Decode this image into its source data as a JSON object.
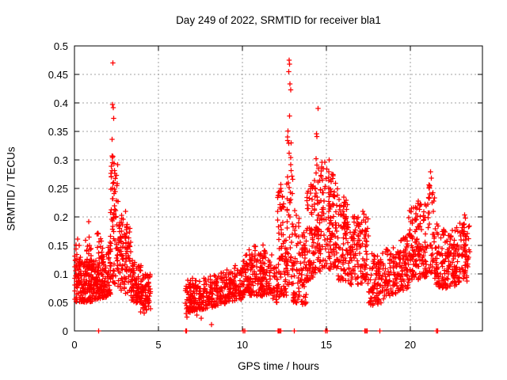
{
  "window": {
    "title": "Day 249 of 2022, SRMTID for receiver bla1"
  },
  "colors": {
    "background": "#ffffff",
    "marker": "#ff0000",
    "grid": "#a0a0a0",
    "axis": "#000000",
    "text": "#000000"
  },
  "chart_data": {
    "type": "scatter",
    "title": "Day 249 of 2022, SRMTID for receiver bla1",
    "xlabel": "GPS time / hours",
    "ylabel": "SRMTID / TECUs",
    "xlim": [
      0,
      24.3
    ],
    "ylim": [
      0,
      0.5
    ],
    "xticks": [
      0,
      5,
      10,
      15,
      20
    ],
    "xtick_labels": [
      "0",
      "5",
      "10",
      "15",
      "20"
    ],
    "yticks": [
      0,
      0.05,
      0.1,
      0.15,
      0.2,
      0.25,
      0.3,
      0.35,
      0.4,
      0.45,
      0.5
    ],
    "ytick_labels": [
      "0",
      "0.05",
      "0.1",
      "0.15",
      "0.2",
      "0.25",
      "0.3",
      "0.35",
      "0.4",
      "0.45",
      "0.5"
    ],
    "grid": true,
    "legend": "none",
    "marker": {
      "shape": "plus",
      "color": "#ff0000",
      "size": 3.2,
      "stroke_width": 1.3
    },
    "seed": 20220249,
    "series_name": "SRMTID",
    "segments_format": [
      "t_start",
      "t_end",
      "count",
      "v_min_start",
      "v_max_start",
      "v_min_end",
      "v_max_end",
      "density_bias_exponent"
    ],
    "segments": [
      [
        0.0,
        0.35,
        50,
        0.05,
        0.135,
        0.05,
        0.135,
        1.3
      ],
      [
        0.05,
        0.3,
        6,
        0.125,
        0.165,
        0.125,
        0.165,
        1.0
      ],
      [
        0.35,
        1.1,
        115,
        0.05,
        0.12,
        0.052,
        0.125,
        1.4
      ],
      [
        0.65,
        1.05,
        16,
        0.11,
        0.19,
        0.11,
        0.185,
        1.1
      ],
      [
        1.1,
        1.9,
        130,
        0.055,
        0.125,
        0.058,
        0.135,
        1.4
      ],
      [
        1.25,
        1.7,
        12,
        0.125,
        0.175,
        0.125,
        0.17,
        1.0
      ],
      [
        1.9,
        2.15,
        40,
        0.06,
        0.155,
        0.065,
        0.175,
        1.2
      ],
      [
        2.15,
        2.6,
        70,
        0.08,
        0.31,
        0.08,
        0.3,
        1.15
      ],
      [
        2.6,
        3.0,
        55,
        0.07,
        0.21,
        0.07,
        0.2,
        1.3
      ],
      [
        3.0,
        3.35,
        45,
        0.065,
        0.195,
        0.065,
        0.185,
        1.2
      ],
      [
        3.35,
        4.0,
        90,
        0.05,
        0.125,
        0.045,
        0.115,
        1.3
      ],
      [
        4.0,
        4.55,
        62,
        0.035,
        0.11,
        0.038,
        0.1,
        1.2
      ],
      [
        6.6,
        7.1,
        58,
        0.03,
        0.095,
        0.035,
        0.095,
        1.2
      ],
      [
        7.1,
        8.05,
        95,
        0.035,
        0.09,
        0.04,
        0.095,
        1.3
      ],
      [
        8.05,
        9.0,
        95,
        0.04,
        0.1,
        0.048,
        0.105,
        1.3
      ],
      [
        9.0,
        10.0,
        100,
        0.05,
        0.11,
        0.055,
        0.12,
        1.3
      ],
      [
        10.0,
        11.0,
        105,
        0.058,
        0.125,
        0.062,
        0.135,
        1.3
      ],
      [
        10.15,
        10.95,
        8,
        0.125,
        0.16,
        0.125,
        0.155,
        1.0
      ],
      [
        11.0,
        11.8,
        88,
        0.06,
        0.135,
        0.062,
        0.14,
        1.3
      ],
      [
        11.05,
        11.4,
        6,
        0.13,
        0.158,
        0.13,
        0.15,
        1.0
      ],
      [
        11.8,
        12.1,
        30,
        0.048,
        0.11,
        0.05,
        0.115,
        1.2
      ],
      [
        12.1,
        12.45,
        58,
        0.05,
        0.265,
        0.055,
        0.25,
        1.15
      ],
      [
        12.45,
        12.65,
        25,
        0.06,
        0.185,
        0.06,
        0.18,
        1.2
      ],
      [
        12.65,
        13.0,
        48,
        0.07,
        0.36,
        0.07,
        0.34,
        1.2
      ],
      [
        13.0,
        13.45,
        48,
        0.05,
        0.23,
        0.048,
        0.2,
        1.5
      ],
      [
        13.45,
        13.8,
        46,
        0.04,
        0.165,
        0.045,
        0.18,
        1.2
      ],
      [
        13.8,
        14.3,
        70,
        0.085,
        0.26,
        0.095,
        0.27,
        1.2
      ],
      [
        14.3,
        15.0,
        95,
        0.1,
        0.305,
        0.11,
        0.3,
        1.3
      ],
      [
        15.0,
        15.7,
        95,
        0.11,
        0.29,
        0.105,
        0.27,
        1.4
      ],
      [
        15.7,
        16.3,
        78,
        0.09,
        0.245,
        0.085,
        0.23,
        1.3
      ],
      [
        16.3,
        16.9,
        65,
        0.08,
        0.205,
        0.082,
        0.2,
        1.3
      ],
      [
        16.9,
        17.5,
        65,
        0.085,
        0.215,
        0.08,
        0.2,
        1.2
      ],
      [
        17.5,
        18.3,
        80,
        0.042,
        0.14,
        0.045,
        0.13,
        1.2
      ],
      [
        18.3,
        19.2,
        85,
        0.055,
        0.14,
        0.065,
        0.15,
        1.3
      ],
      [
        19.2,
        19.9,
        78,
        0.068,
        0.16,
        0.075,
        0.17,
        1.3
      ],
      [
        19.9,
        20.45,
        72,
        0.085,
        0.215,
        0.09,
        0.225,
        1.3
      ],
      [
        20.45,
        21.1,
        78,
        0.09,
        0.23,
        0.095,
        0.24,
        1.3
      ],
      [
        21.1,
        21.45,
        38,
        0.1,
        0.265,
        0.1,
        0.25,
        1.1
      ],
      [
        21.45,
        22.1,
        78,
        0.078,
        0.19,
        0.075,
        0.18,
        1.3
      ],
      [
        22.1,
        22.7,
        70,
        0.072,
        0.17,
        0.078,
        0.18,
        1.3
      ],
      [
        22.7,
        23.3,
        62,
        0.08,
        0.185,
        0.095,
        0.205,
        1.2
      ],
      [
        23.2,
        23.55,
        30,
        0.07,
        0.205,
        0.1,
        0.205,
        1.1
      ]
    ],
    "outlier_points": [
      [
        2.28,
        0.47
      ],
      [
        2.27,
        0.397
      ],
      [
        2.31,
        0.392
      ],
      [
        2.34,
        0.373
      ],
      [
        2.23,
        0.336
      ],
      [
        2.29,
        0.306
      ],
      [
        2.36,
        0.294
      ],
      [
        3.05,
        0.21
      ],
      [
        0.85,
        0.192
      ],
      [
        12.78,
        0.475
      ],
      [
        12.81,
        0.468
      ],
      [
        12.76,
        0.455
      ],
      [
        12.84,
        0.433
      ],
      [
        12.88,
        0.423
      ],
      [
        12.8,
        0.377
      ],
      [
        12.72,
        0.351
      ],
      [
        12.9,
        0.33
      ],
      [
        14.52,
        0.39
      ],
      [
        14.41,
        0.346
      ],
      [
        14.45,
        0.341
      ],
      [
        14.92,
        0.296
      ],
      [
        15.18,
        0.3
      ],
      [
        17.18,
        0.21
      ],
      [
        17.25,
        0.205
      ],
      [
        21.22,
        0.279
      ],
      [
        21.26,
        0.268
      ],
      [
        21.17,
        0.255
      ],
      [
        7.3,
        0.028
      ],
      [
        7.55,
        0.022
      ],
      [
        8.16,
        0.011
      ],
      [
        3.95,
        0.033
      ],
      [
        4.15,
        0.031
      ],
      [
        6.7,
        0.024
      ]
    ],
    "zero_marker_x": [
      1.45,
      6.62,
      6.68,
      10.05,
      10.15,
      12.13,
      12.18,
      12.23,
      12.28,
      13.1,
      14.95,
      15.05,
      17.3,
      17.36,
      17.43,
      18.2,
      21.56,
      21.64
    ]
  }
}
